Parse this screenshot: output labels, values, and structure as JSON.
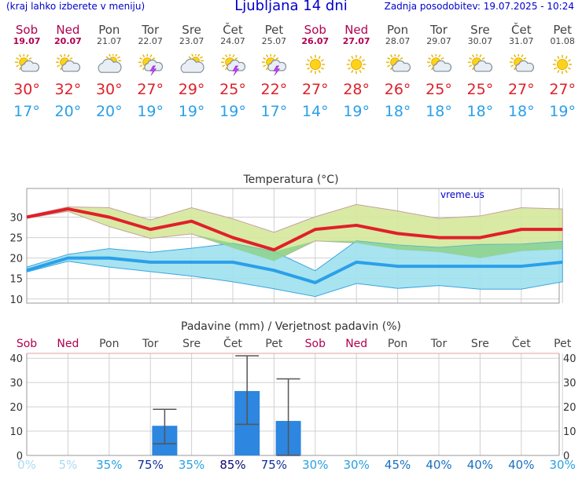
{
  "header": {
    "note": "(kraj lahko izberete v meniju)",
    "title": "Ljubljana 14 dni",
    "updated": "Zadnja posodobitev: 19.07.2025 - 10:24"
  },
  "days": [
    {
      "name": "Sob",
      "date": "19.07",
      "weekend": true,
      "icon": "sun-cloud-icon",
      "tmax": "30°",
      "tmin": "17°"
    },
    {
      "name": "Ned",
      "date": "20.07",
      "weekend": true,
      "icon": "sun-cloud-icon",
      "tmax": "32°",
      "tmin": "20°"
    },
    {
      "name": "Pon",
      "date": "21.07",
      "weekend": false,
      "icon": "cloud-sun-icon",
      "tmax": "30°",
      "tmin": "20°"
    },
    {
      "name": "Tor",
      "date": "22.07",
      "weekend": false,
      "icon": "sun-storm-icon",
      "tmax": "27°",
      "tmin": "19°"
    },
    {
      "name": "Sre",
      "date": "23.07",
      "weekend": false,
      "icon": "cloud-sun-icon",
      "tmax": "29°",
      "tmin": "19°"
    },
    {
      "name": "Čet",
      "date": "24.07",
      "weekend": false,
      "icon": "sun-storm-icon",
      "tmax": "25°",
      "tmin": "19°"
    },
    {
      "name": "Pet",
      "date": "25.07",
      "weekend": false,
      "icon": "sun-storm-icon",
      "tmax": "22°",
      "tmin": "17°"
    },
    {
      "name": "Sob",
      "date": "26.07",
      "weekend": true,
      "icon": "sun-icon",
      "tmax": "27°",
      "tmin": "14°"
    },
    {
      "name": "Ned",
      "date": "27.07",
      "weekend": true,
      "icon": "sun-icon",
      "tmax": "28°",
      "tmin": "19°"
    },
    {
      "name": "Pon",
      "date": "28.07",
      "weekend": false,
      "icon": "sun-cloud-icon",
      "tmax": "26°",
      "tmin": "18°"
    },
    {
      "name": "Tor",
      "date": "29.07",
      "weekend": false,
      "icon": "sun-cloud-icon",
      "tmax": "25°",
      "tmin": "18°"
    },
    {
      "name": "Sre",
      "date": "30.07",
      "weekend": false,
      "icon": "sun-cloud-icon",
      "tmax": "25°",
      "tmin": "18°"
    },
    {
      "name": "Čet",
      "date": "31.07",
      "weekend": false,
      "icon": "sun-cloud-icon",
      "tmax": "27°",
      "tmin": "18°"
    },
    {
      "name": "Pet",
      "date": "01.08",
      "weekend": false,
      "icon": "sun-icon",
      "tmax": "27°",
      "tmin": "19°"
    }
  ],
  "colors": {
    "weekend": "#b00050",
    "weekday": "#444444",
    "tmax": "#e0202a",
    "tmin": "#2aa0e8",
    "warm_band": "#d4e89a",
    "cool_band": "#9ee0ee",
    "overlap_band": "#8ed28a",
    "precip_bar": "#2d86e0",
    "error_bar": "#555555"
  },
  "chart_data": [
    {
      "type": "line",
      "title": "Temperatura (°C)",
      "watermark": "vreme.us",
      "ylim": [
        9,
        37
      ],
      "yticks": [
        10,
        15,
        20,
        25,
        30
      ],
      "grid": true,
      "x": [
        "Sob",
        "Ned",
        "Pon",
        "Tor",
        "Sre",
        "Čet",
        "Pet",
        "Sob",
        "Ned",
        "Pon",
        "Tor",
        "Sre",
        "Čet",
        "Pet"
      ],
      "series": [
        {
          "name": "max",
          "color": "#e0202a",
          "values": [
            30,
            32,
            30,
            27,
            29,
            25,
            22,
            27,
            28,
            26,
            25,
            25,
            27,
            27
          ],
          "band_high": [
            30.3,
            32.5,
            32.3,
            29.3,
            32.3,
            29.6,
            26.3,
            30.1,
            33.1,
            31.5,
            29.7,
            30.3,
            32.3,
            32.0
          ],
          "band_low": [
            29.7,
            31.4,
            27.7,
            24.8,
            25.9,
            22.5,
            19.3,
            24.2,
            23.7,
            22.1,
            21.5,
            20.0,
            21.7,
            22.2
          ]
        },
        {
          "name": "min",
          "color": "#2aa0e8",
          "values": [
            17,
            20,
            20,
            19,
            19,
            19,
            17,
            14,
            19,
            18,
            18,
            18,
            18,
            19
          ],
          "band_high": [
            17.8,
            20.9,
            22.3,
            21.4,
            22.4,
            23.6,
            21.6,
            16.9,
            24.2,
            23.2,
            22.6,
            23.3,
            23.4,
            24.1
          ],
          "band_low": [
            16.6,
            19.2,
            17.8,
            16.7,
            15.6,
            14.2,
            12.5,
            10.6,
            13.8,
            12.6,
            13.3,
            12.4,
            12.4,
            14.2
          ]
        }
      ]
    },
    {
      "type": "bar",
      "title": "Padavine (mm) / Verjetnost padavin (%)",
      "ylim": [
        0,
        42
      ],
      "yticks": [
        0,
        10,
        20,
        30,
        40
      ],
      "grid": true,
      "categories": [
        "Sob",
        "Ned",
        "Pon",
        "Tor",
        "Sre",
        "Čet",
        "Pet",
        "Sob",
        "Ned",
        "Pon",
        "Tor",
        "Sre",
        "Čet",
        "Pet"
      ],
      "values": [
        0,
        0,
        0,
        12.2,
        0,
        26.5,
        14.2,
        0,
        0,
        0,
        0,
        0,
        0,
        0
      ],
      "error_low": [
        null,
        null,
        null,
        4.8,
        null,
        12.8,
        0,
        null,
        null,
        null,
        null,
        null,
        null,
        null
      ],
      "error_high": [
        null,
        null,
        null,
        19.0,
        null,
        41.0,
        31.5,
        null,
        null,
        null,
        null,
        null,
        null,
        null
      ],
      "probabilities": [
        "0%",
        "5%",
        "35%",
        "75%",
        "35%",
        "85%",
        "75%",
        "30%",
        "30%",
        "45%",
        "40%",
        "40%",
        "40%",
        "30%"
      ],
      "probability_values": [
        0,
        5,
        35,
        75,
        35,
        85,
        75,
        30,
        30,
        45,
        40,
        40,
        40,
        30
      ]
    }
  ]
}
